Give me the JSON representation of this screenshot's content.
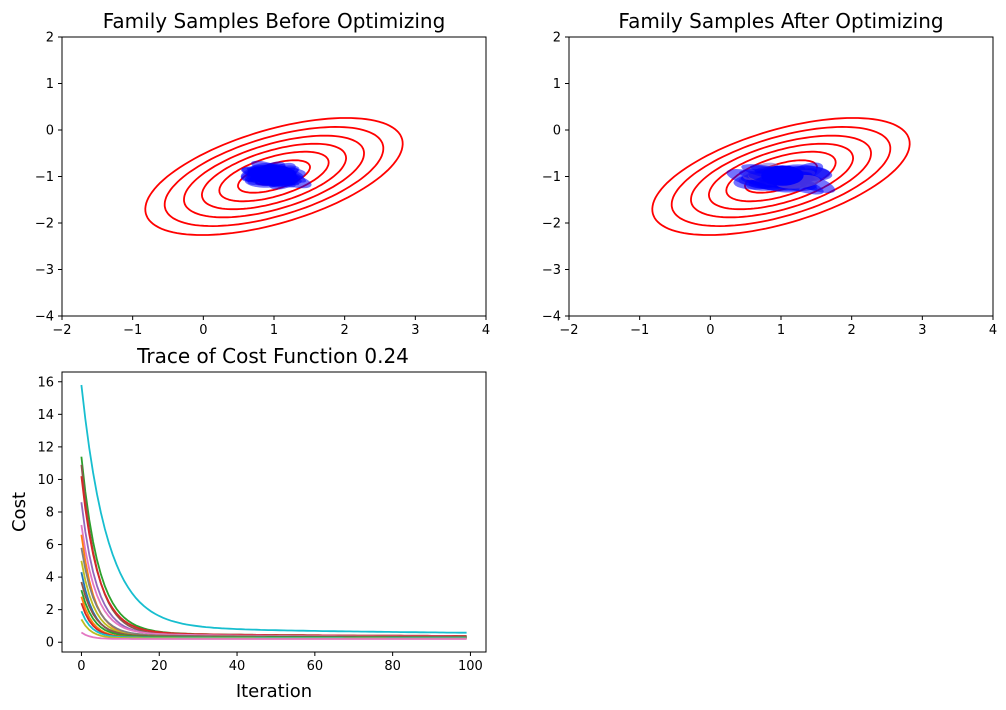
{
  "figure": {
    "background": "#ffffff"
  },
  "chart_data": [
    {
      "type": "scatter",
      "title": "Family Samples Before Optimizing",
      "xlabel": "",
      "ylabel": "",
      "xlim": [
        -2,
        4
      ],
      "ylim": [
        -4,
        2
      ],
      "xticks": [
        "−2",
        "−1",
        "0",
        "1",
        "2",
        "3",
        "4"
      ],
      "yticks": [
        "−4",
        "−3",
        "−2",
        "−1",
        "0",
        "1",
        "2"
      ],
      "grid": false,
      "contours": {
        "color": "#ff0000",
        "center": [
          1,
          -1
        ],
        "angle_deg": 28,
        "levels": [
          {
            "a": 2.0,
            "b": 0.95
          },
          {
            "a": 1.7,
            "b": 0.8
          },
          {
            "a": 1.4,
            "b": 0.66
          },
          {
            "a": 1.12,
            "b": 0.53
          },
          {
            "a": 0.85,
            "b": 0.4
          },
          {
            "a": 0.56,
            "b": 0.26
          },
          {
            "a": 0.28,
            "b": 0.13
          }
        ]
      },
      "samples": {
        "color": "#0000ff",
        "spread_x": 0.27,
        "spread_y": 0.17,
        "ellipse_a": 0.32,
        "ellipse_b": 0.12,
        "count": 40
      }
    },
    {
      "type": "scatter",
      "title": "Family Samples After Optimizing",
      "xlabel": "",
      "ylabel": "",
      "xlim": [
        -2,
        4
      ],
      "ylim": [
        -4,
        2
      ],
      "xticks": [
        "−2",
        "−1",
        "0",
        "1",
        "2",
        "3",
        "4"
      ],
      "yticks": [
        "−4",
        "−3",
        "−2",
        "−1",
        "0",
        "1",
        "2"
      ],
      "grid": false,
      "contours": {
        "color": "#ff0000",
        "center": [
          1,
          -1
        ],
        "angle_deg": 28,
        "levels": [
          {
            "a": 2.0,
            "b": 0.95
          },
          {
            "a": 1.7,
            "b": 0.8
          },
          {
            "a": 1.4,
            "b": 0.66
          },
          {
            "a": 1.12,
            "b": 0.53
          },
          {
            "a": 0.85,
            "b": 0.4
          },
          {
            "a": 0.56,
            "b": 0.26
          },
          {
            "a": 0.28,
            "b": 0.13
          }
        ]
      },
      "samples": {
        "color": "#0000ff",
        "spread_x": 0.42,
        "spread_y": 0.2,
        "ellipse_a": 0.42,
        "ellipse_b": 0.14,
        "count": 40,
        "accent_color": "#7755cc"
      }
    },
    {
      "type": "line",
      "title": "Trace of Cost Function 0.24",
      "xlabel": "Iteration",
      "ylabel": "Cost",
      "xlim": [
        -5,
        104
      ],
      "ylim": [
        -0.6,
        16.6
      ],
      "xticks": [
        "0",
        "20",
        "40",
        "60",
        "80",
        "100"
      ],
      "yticks": [
        "0",
        "2",
        "4",
        "6",
        "8",
        "10",
        "12",
        "14",
        "16"
      ],
      "grid": false,
      "iterations": 100,
      "series": [
        {
          "color": "#17becf",
          "start": 15.8,
          "final": 0.4,
          "plateau": 1.0,
          "rate": 0.15,
          "slow": 0.012
        },
        {
          "color": "#2ca02c",
          "start": 11.4,
          "final": 0.35,
          "plateau": 0.6,
          "rate": 0.22,
          "slow": 0.02
        },
        {
          "color": "#8c564b",
          "start": 10.9,
          "final": 0.3,
          "plateau": 0.5,
          "rate": 0.24,
          "slow": 0.02
        },
        {
          "color": "#d62728",
          "start": 10.2,
          "final": 0.35,
          "plateau": 0.6,
          "rate": 0.23,
          "slow": 0.02
        },
        {
          "color": "#9467bd",
          "start": 8.6,
          "final": 0.3,
          "plateau": 0.5,
          "rate": 0.25,
          "slow": 0.02
        },
        {
          "color": "#e377c2",
          "start": 7.2,
          "final": 0.3,
          "plateau": 0.55,
          "rate": 0.26,
          "slow": 0.02
        },
        {
          "color": "#ff7f0e",
          "start": 6.6,
          "final": 0.28,
          "plateau": 0.4,
          "rate": 0.3,
          "slow": 0.02
        },
        {
          "color": "#7f7f7f",
          "start": 5.8,
          "final": 0.3,
          "plateau": 0.45,
          "rate": 0.28,
          "slow": 0.02
        },
        {
          "color": "#bcbd22",
          "start": 5.0,
          "final": 0.28,
          "plateau": 0.4,
          "rate": 0.3,
          "slow": 0.02
        },
        {
          "color": "#1f77b4",
          "start": 4.3,
          "final": 0.27,
          "plateau": 0.35,
          "rate": 0.32,
          "slow": 0.02
        },
        {
          "color": "#8c564b",
          "start": 3.7,
          "final": 0.3,
          "plateau": 0.4,
          "rate": 0.3,
          "slow": 0.02
        },
        {
          "color": "#2ca02c",
          "start": 3.2,
          "final": 0.28,
          "plateau": 0.35,
          "rate": 0.32,
          "slow": 0.02
        },
        {
          "color": "#ff7f0e",
          "start": 2.8,
          "final": 0.25,
          "plateau": 0.3,
          "rate": 0.35,
          "slow": 0.02
        },
        {
          "color": "#d62728",
          "start": 2.4,
          "final": 0.25,
          "plateau": 0.3,
          "rate": 0.36,
          "slow": 0.02
        },
        {
          "color": "#17becf",
          "start": 1.9,
          "final": 0.25,
          "plateau": 0.3,
          "rate": 0.38,
          "slow": 0.02
        },
        {
          "color": "#bcbd22",
          "start": 1.4,
          "final": 0.22,
          "plateau": 0.25,
          "rate": 0.4,
          "slow": 0.02
        },
        {
          "color": "#e377c2",
          "start": 0.6,
          "final": 0.2,
          "plateau": 0.2,
          "rate": 0.45,
          "slow": 0.02
        }
      ]
    }
  ]
}
